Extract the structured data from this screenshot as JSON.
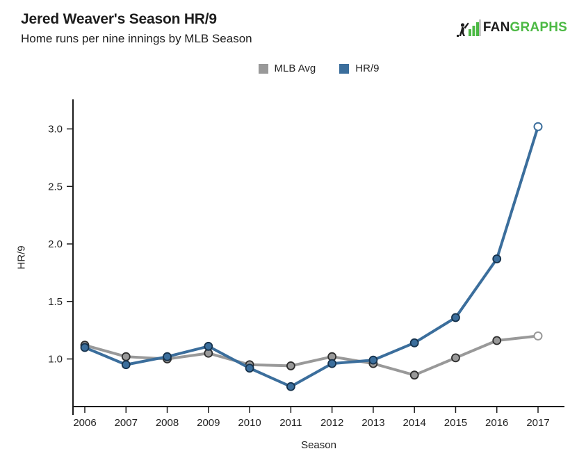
{
  "header": {
    "logo": {
      "fan": "FAN",
      "graphs": "GRAPHS",
      "green": "#4cb944",
      "black": "#1d1d1d"
    }
  },
  "chart_data": {
    "type": "line",
    "title": "Jered Weaver's Season HR/9",
    "subtitle": "Home runs per nine innings by MLB Season",
    "xlabel": "Season",
    "ylabel": "HR/9",
    "categories": [
      "2006",
      "2007",
      "2008",
      "2009",
      "2010",
      "2011",
      "2012",
      "2013",
      "2014",
      "2015",
      "2016",
      "2017"
    ],
    "series": [
      {
        "name": "MLB Avg",
        "color": "#999999",
        "marker_stroke": "#2d2d2d",
        "values": [
          1.12,
          1.02,
          1.0,
          1.05,
          0.95,
          0.94,
          1.02,
          0.96,
          0.86,
          1.01,
          1.16,
          1.2
        ]
      },
      {
        "name": "HR/9",
        "color": "#3b6e9c",
        "marker_stroke": "#16324c",
        "values": [
          1.1,
          0.95,
          1.02,
          1.11,
          0.92,
          0.76,
          0.96,
          0.99,
          1.14,
          1.36,
          1.87,
          3.02
        ]
      }
    ],
    "yticks": [
      "1.0",
      "1.5",
      "2.0",
      "2.5",
      "3.0"
    ],
    "ylim": [
      0.6,
      3.25
    ],
    "grid": false,
    "legend_position": "top-center",
    "open_final_marker": true,
    "axis_color": "#1a1a1a"
  }
}
